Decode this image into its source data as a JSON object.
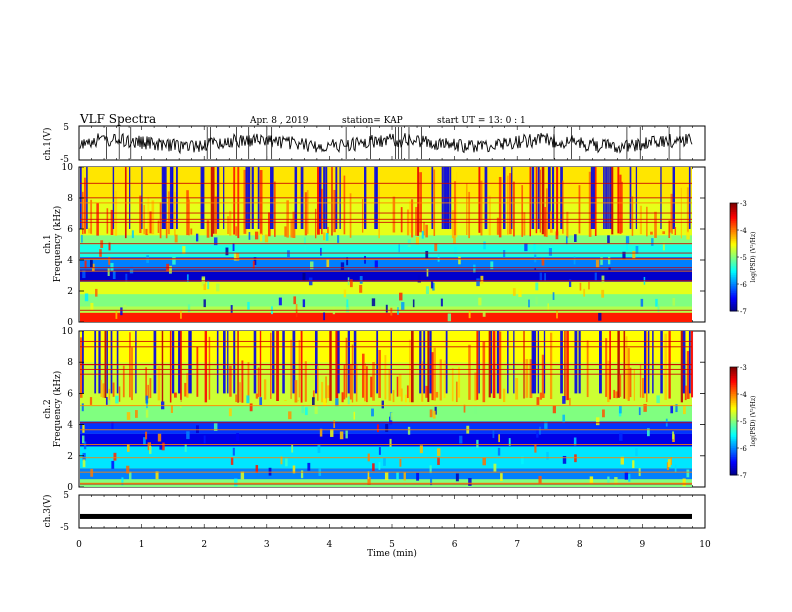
{
  "header": {
    "title": "VLF Spectra",
    "date": "Apr. 8 , 2019",
    "station": "station= KAP",
    "start": "start UT = 13: 0 : 1"
  },
  "colorbar": {
    "ticks": [
      "-3",
      "-4",
      "-5",
      "-6",
      "-7"
    ],
    "label": "log(PSD) (V²/Hz)"
  },
  "chart_data": [
    {
      "id": "ch1-waveform",
      "type": "line",
      "ylabel": "ch.1(V)",
      "ylim": [
        -5,
        5
      ],
      "yticks": [
        "5",
        "-5"
      ],
      "xlim": [
        0,
        10
      ],
      "note_color": "#000000"
    },
    {
      "id": "ch1-spectrogram",
      "type": "heatmap",
      "ylabel": "ch.1 Frequency (kHz)",
      "ylim": [
        0,
        10
      ],
      "yticks": [
        "0",
        "2",
        "4",
        "6",
        "8",
        "10"
      ],
      "xlim": [
        0,
        10
      ],
      "zlim": [
        -7,
        -3
      ],
      "colorbar_label": "log(PSD) (V²/Hz)",
      "bands": [
        {
          "f0": 0.0,
          "f1": 0.6,
          "level": -3.6
        },
        {
          "f0": 0.6,
          "f1": 1.0,
          "level": -4.8
        },
        {
          "f0": 1.0,
          "f1": 1.8,
          "level": -5.0
        },
        {
          "f0": 1.8,
          "f1": 2.6,
          "level": -4.6
        },
        {
          "f0": 2.6,
          "f1": 3.4,
          "level": -6.7
        },
        {
          "f0": 3.4,
          "f1": 4.2,
          "level": -6.0
        },
        {
          "f0": 4.2,
          "f1": 5.0,
          "level": -5.4
        },
        {
          "f0": 5.0,
          "f1": 5.6,
          "level": -5.0
        },
        {
          "f0": 5.6,
          "f1": 8.0,
          "level": -4.6
        },
        {
          "f0": 8.0,
          "f1": 10.0,
          "level": -4.4
        }
      ]
    },
    {
      "id": "ch2-spectrogram",
      "type": "heatmap",
      "ylabel": "ch.2 Frequency (kHz)",
      "ylim": [
        0,
        10
      ],
      "yticks": [
        "0",
        "2",
        "4",
        "6",
        "8",
        "10"
      ],
      "xlim": [
        0,
        10
      ],
      "zlim": [
        -7,
        -3
      ],
      "colorbar_label": "log(PSD) (V²/Hz)",
      "bands": [
        {
          "f0": 0.0,
          "f1": 0.5,
          "level": -5.0
        },
        {
          "f0": 0.5,
          "f1": 1.2,
          "level": -6.0
        },
        {
          "f0": 1.2,
          "f1": 2.6,
          "level": -5.6
        },
        {
          "f0": 2.6,
          "f1": 3.4,
          "level": -6.6
        },
        {
          "f0": 3.4,
          "f1": 4.2,
          "level": -6.3
        },
        {
          "f0": 4.2,
          "f1": 5.2,
          "level": -5.0
        },
        {
          "f0": 5.2,
          "f1": 8.0,
          "level": -4.7
        },
        {
          "f0": 8.0,
          "f1": 10.0,
          "level": -4.5
        }
      ]
    },
    {
      "id": "ch3-waveform",
      "type": "line",
      "ylabel": "ch.3(V)",
      "ylim": [
        -5,
        5
      ],
      "yticks": [
        "5",
        "-5"
      ],
      "xlim": [
        0,
        10
      ],
      "values": {
        "y": -1.5
      }
    }
  ],
  "xaxis": {
    "label": "Time (min)",
    "ticks": [
      "0",
      "1",
      "2",
      "3",
      "4",
      "5",
      "6",
      "7",
      "8",
      "9",
      "10"
    ]
  }
}
